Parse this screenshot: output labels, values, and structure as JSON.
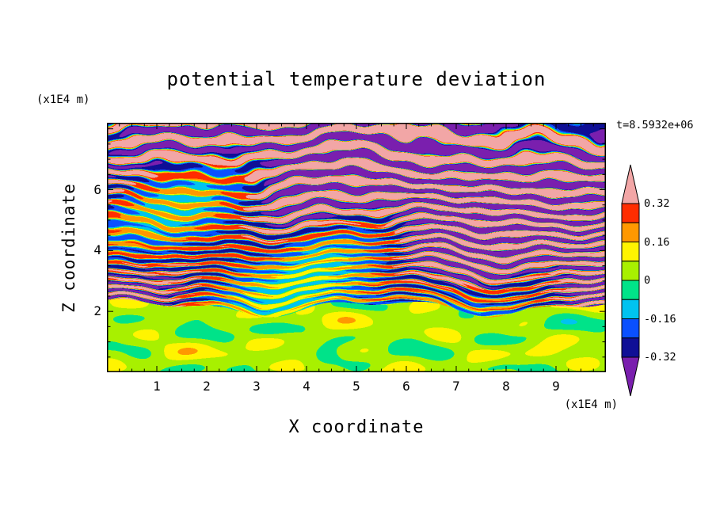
{
  "chart_data": {
    "type": "heatmap",
    "title": "potential temperature deviation",
    "xlabel": "X coordinate",
    "ylabel": "Z coordinate",
    "x_unit": "(x1E4 m)",
    "y_unit": "(x1E4 m)",
    "timestamp": "t=8.5932e+06",
    "x_ticks": [
      1,
      2,
      3,
      4,
      5,
      6,
      7,
      8,
      9
    ],
    "y_ticks": [
      2,
      4,
      6
    ],
    "xlim": [
      0,
      10
    ],
    "ylim": [
      0,
      8.2
    ],
    "grid": false,
    "frame_color": "#000000",
    "background": "#ffffff",
    "colorbar": {
      "position": "right",
      "labels_top_to_bottom": [
        "0.32",
        "0.16",
        "0",
        "-0.16",
        "-0.32"
      ],
      "levels": [
        -0.32,
        -0.24,
        -0.16,
        -0.08,
        0,
        0.08,
        0.16,
        0.24,
        0.32
      ],
      "colors_low_to_high": [
        "#7a1fae",
        "#0f0f96",
        "#0a50ff",
        "#00c3f0",
        "#00e389",
        "#a8f000",
        "#fff400",
        "#ff9800",
        "#ff2d00",
        "#f2a6a6"
      ],
      "below_range_color": "#7a1fae",
      "above_range_color": "#f2a6a6"
    },
    "field_description": "Horizontally layered turbulent potential-temperature deviation field: broad alternating pink (>0.32) and purple (<-0.32) wavy bands aloft with thin rainbow filaments at their edges, fine multicolour horizontal striations at mid-levels, and a nearly uniform weak-positive region (spring green with green-yellow blobs) below z~2.",
    "z_regions": [
      {
        "z_range": [
          0,
          2
        ],
        "description": "weak positive anomalies near 0; spring green background with green-yellow blobs and sparse yellow/orange specks"
      },
      {
        "z_range": [
          2,
          4.5
        ],
        "description": "fine horizontal striations spanning the full colour range, thin red/orange/yellow and blue/cyan filaments"
      },
      {
        "z_range": [
          4.5,
          8.2
        ],
        "description": "broad alternating pink and purple layered wave bands with narrow transitional filaments"
      }
    ]
  }
}
